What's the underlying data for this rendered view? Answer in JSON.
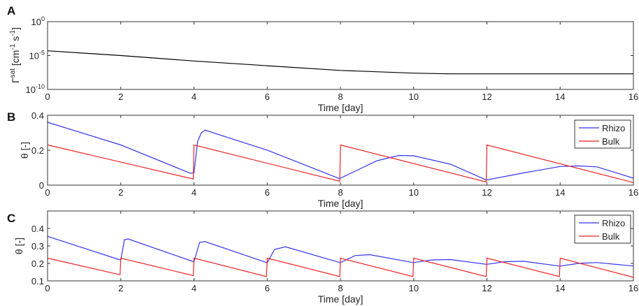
{
  "chart_data": [
    {
      "panel": "A",
      "type": "line",
      "ylog": true,
      "xlabel": "Time [day]",
      "ylabel_base": "Γ",
      "ylabel_sup": "sat",
      "ylabel_rest": " [cm",
      "ylabel_sup2": "-1",
      "ylabel_rest2": " s",
      "ylabel_sup3": "-1",
      "ylabel_end": "]",
      "xlim": [
        0,
        16
      ],
      "ylim_exp": [
        -10,
        0
      ],
      "xticks": [
        "0",
        "2",
        "4",
        "6",
        "8",
        "10",
        "12",
        "14",
        "16"
      ],
      "yticks": [
        {
          "base": "10",
          "exp": "0",
          "e": 0
        },
        {
          "base": "10",
          "exp": "-5",
          "e": -5
        },
        {
          "base": "10",
          "exp": "-10",
          "e": -10
        }
      ],
      "series": [
        {
          "color": "#000000",
          "x": [
            0,
            2,
            4,
            6,
            8,
            10,
            11,
            12,
            14,
            16
          ],
          "log10_y": [
            -4.3,
            -5.0,
            -5.8,
            -6.5,
            -7.2,
            -7.6,
            -7.7,
            -7.7,
            -7.7,
            -7.7
          ]
        }
      ]
    },
    {
      "panel": "B",
      "type": "line",
      "xlabel": "Time [day]",
      "ylabel": "θ [-]",
      "xlim": [
        0,
        16
      ],
      "ylim": [
        0,
        0.4
      ],
      "xticks": [
        "0",
        "2",
        "4",
        "6",
        "8",
        "10",
        "12",
        "14",
        "16"
      ],
      "yticks": [
        "0",
        "0.2",
        "0.4"
      ],
      "legend": "top-right",
      "series": [
        {
          "name": "Rhizo",
          "color": "#3333ee",
          "x": [
            0,
            2,
            3.9,
            4.0,
            4.1,
            4.2,
            4.3,
            6,
            7.98,
            8.0,
            8.5,
            9,
            9.6,
            10,
            11,
            11.98,
            12.0,
            13,
            14,
            14.5,
            15,
            16
          ],
          "y": [
            0.36,
            0.23,
            0.068,
            0.07,
            0.25,
            0.3,
            0.315,
            0.2,
            0.037,
            0.04,
            0.09,
            0.14,
            0.17,
            0.168,
            0.12,
            0.03,
            0.03,
            0.07,
            0.107,
            0.11,
            0.105,
            0.04
          ]
        },
        {
          "name": "Bulk",
          "color": "#ee2222",
          "x": [
            0,
            3.98,
            4.0,
            7.98,
            8.0,
            11.98,
            12.0,
            16
          ],
          "y": [
            0.23,
            0.035,
            0.23,
            0.022,
            0.23,
            0.018,
            0.23,
            0.015
          ]
        }
      ]
    },
    {
      "panel": "C",
      "type": "line",
      "xlabel": "Time [day]",
      "ylabel": "θ [-]",
      "xlim": [
        0,
        16
      ],
      "ylim": [
        0.1,
        0.5
      ],
      "xticks": [
        "0",
        "2",
        "4",
        "6",
        "8",
        "10",
        "12",
        "14",
        "16"
      ],
      "yticks": [
        "0.1",
        "0.2",
        "0.3",
        "0.4"
      ],
      "legend": "top-right",
      "series": [
        {
          "name": "Rhizo",
          "color": "#3333ee",
          "x": [
            0,
            1.98,
            2.0,
            2.1,
            2.2,
            3.98,
            4.0,
            4.15,
            4.3,
            5.98,
            6.0,
            6.2,
            6.5,
            7.98,
            8.0,
            8.4,
            8.8,
            9.98,
            10.0,
            10.5,
            11,
            11.98,
            12.0,
            12.5,
            13,
            13.98,
            14.0,
            14.5,
            15,
            16
          ],
          "y": [
            0.355,
            0.22,
            0.22,
            0.335,
            0.34,
            0.21,
            0.21,
            0.32,
            0.325,
            0.205,
            0.205,
            0.28,
            0.295,
            0.205,
            0.205,
            0.245,
            0.25,
            0.205,
            0.205,
            0.22,
            0.222,
            0.195,
            0.195,
            0.21,
            0.212,
            0.185,
            0.185,
            0.2,
            0.205,
            0.185
          ]
        },
        {
          "name": "Bulk",
          "color": "#ee2222",
          "x": [
            0,
            1.98,
            2.0,
            3.98,
            4.0,
            5.98,
            6.0,
            7.98,
            8.0,
            9.98,
            10.0,
            11.98,
            12.0,
            13.98,
            14.0,
            16
          ],
          "y": [
            0.23,
            0.135,
            0.23,
            0.13,
            0.23,
            0.125,
            0.23,
            0.125,
            0.23,
            0.125,
            0.23,
            0.125,
            0.23,
            0.125,
            0.23,
            0.12
          ]
        }
      ]
    }
  ]
}
